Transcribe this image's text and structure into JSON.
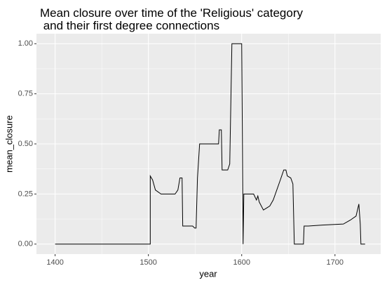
{
  "chart_data": {
    "type": "line",
    "title": [
      "Mean closure over time of the 'Religious' category",
      " and their first degree connections"
    ],
    "x_label": "year",
    "y_label": "mean_closure",
    "x": [
      1400,
      1502,
      1502,
      1504.5,
      1507.5,
      1513.5,
      1528.6,
      1531.6,
      1533.8,
      1536.1,
      1536.8,
      1547.4,
      1549.6,
      1551.1,
      1552.6,
      1554.9,
      1575.2,
      1576,
      1578.2,
      1579,
      1585,
      1587.2,
      1589.5,
      1600,
      1600.8,
      1601.5,
      1602.3,
      1612.8,
      1615.8,
      1617.3,
      1618.8,
      1623.3,
      1630.1,
      1633.8,
      1637.6,
      1641.4,
      1645.1,
      1647.4,
      1648.9,
      1652.6,
      1654.9,
      1656.4,
      1666.2,
      1666.9,
      1671.4,
      1686.5,
      1709,
      1716.5,
      1722.6,
      1725.6,
      1727.1,
      1727.8,
      1732.3
    ],
    "series": [
      {
        "name": "mean_closure",
        "color": "#000000",
        "values": [
          0,
          0,
          0.34,
          0.32,
          0.27,
          0.25,
          0.25,
          0.27,
          0.33,
          0.33,
          0.09,
          0.09,
          0.08,
          0.08,
          0.33,
          0.5,
          0.5,
          0.57,
          0.57,
          0.37,
          0.37,
          0.4,
          1,
          1,
          0.5,
          0,
          0.25,
          0.25,
          0.22,
          0.24,
          0.21,
          0.17,
          0.19,
          0.22,
          0.27,
          0.32,
          0.37,
          0.37,
          0.34,
          0.33,
          0.3,
          0,
          0,
          0.09,
          0.09,
          0.095,
          0.1,
          0.12,
          0.14,
          0.2,
          0.1,
          0,
          0
        ]
      }
    ],
    "xlim": [
      1380,
      1749
    ],
    "ylim": [
      -0.05,
      1.05
    ],
    "xticks": [
      1400,
      1500,
      1600,
      1700
    ],
    "yticks": [
      {
        "value": 0,
        "label": "0.00"
      },
      {
        "value": 0.25,
        "label": "0.25"
      },
      {
        "value": 0.5,
        "label": "0.50"
      },
      {
        "value": 0.75,
        "label": "0.75"
      },
      {
        "value": 1,
        "label": "1.00"
      }
    ],
    "grid": true
  }
}
